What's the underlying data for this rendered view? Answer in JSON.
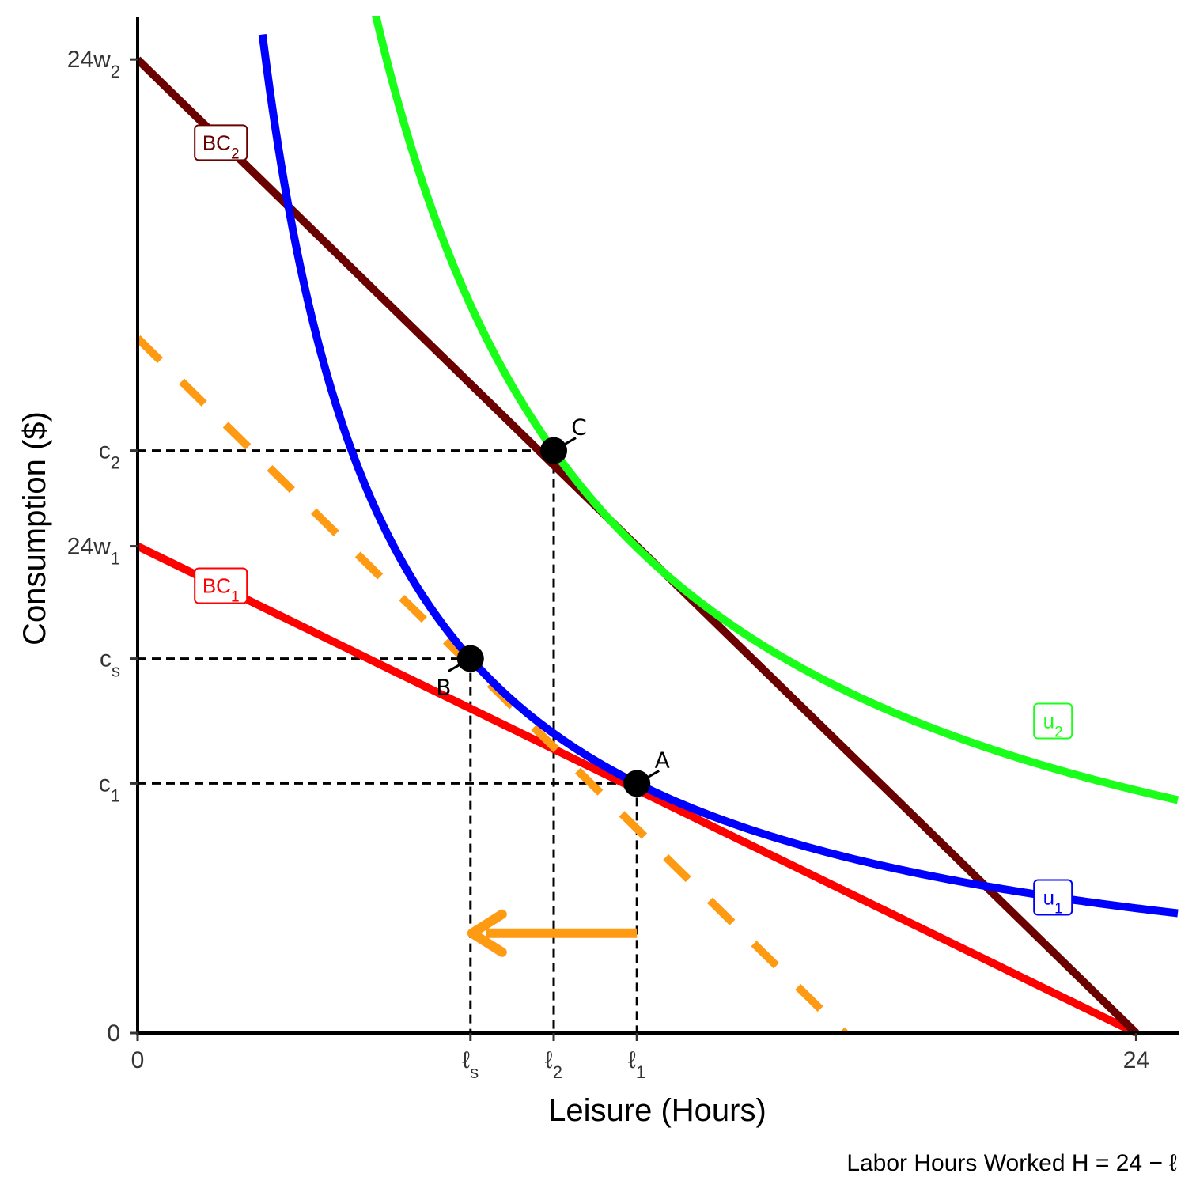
{
  "chart_data": {
    "type": "line",
    "xlabel": "Leisure (Hours)",
    "ylabel": "Consumption ($)",
    "caption": "Labor Hours Worked H = 24 − ℓ",
    "xlim": [
      0,
      25
    ],
    "ylim": [
      0,
      24.3
    ],
    "x_ticks": [
      {
        "value": 0,
        "label": "0"
      },
      {
        "value": 8,
        "label": "ℓ",
        "sub": "s"
      },
      {
        "value": 10,
        "label": "ℓ",
        "sub": "2"
      },
      {
        "value": 12,
        "label": "ℓ",
        "sub": "1"
      },
      {
        "value": 24,
        "label": "24"
      }
    ],
    "y_ticks": [
      {
        "value": 0,
        "label": "0"
      },
      {
        "value": 6,
        "label": "c",
        "sub": "1"
      },
      {
        "value": 9,
        "label": "c",
        "sub": "s"
      },
      {
        "value": 11.7,
        "label": "24w",
        "sub": "1"
      },
      {
        "value": 14,
        "label": "c",
        "sub": "2"
      },
      {
        "value": 23.4,
        "label": "24w",
        "sub": "2"
      }
    ],
    "series": [
      {
        "name": "BC",
        "sub": "1",
        "kind": "line",
        "color": "#ff0000",
        "points": [
          [
            0,
            11.7
          ],
          [
            24,
            0
          ]
        ],
        "label_at": [
          2,
          10.75
        ]
      },
      {
        "name": "BC",
        "sub": "2",
        "kind": "line",
        "color": "#6b0000",
        "points": [
          [
            0,
            23.4
          ],
          [
            24,
            0
          ]
        ],
        "label_at": [
          2,
          21.4
        ]
      },
      {
        "name": "",
        "kind": "dashed",
        "color": "#ff9a13",
        "points": [
          [
            0,
            16.7
          ],
          [
            17,
            0
          ]
        ]
      },
      {
        "name": "u",
        "sub": "1",
        "kind": "curve",
        "color": "#0000ff",
        "k": 72,
        "x_start": 3,
        "x_end": 25,
        "label_at": [
          22,
          3.26
        ]
      },
      {
        "name": "u",
        "sub": "2",
        "kind": "curve",
        "color": "#1aff1a",
        "k": 140,
        "x_start": 4,
        "x_end": 25,
        "label_at": [
          22,
          7.5
        ]
      }
    ],
    "points": [
      {
        "label": "A",
        "x": 12,
        "y": 6,
        "label_pos": "upper-right"
      },
      {
        "label": "B",
        "x": 8,
        "y": 9,
        "label_pos": "lower-left"
      },
      {
        "label": "C",
        "x": 10,
        "y": 14,
        "label_pos": "upper-right"
      }
    ],
    "guides": [
      [
        12,
        6
      ],
      [
        8,
        9
      ],
      [
        10,
        14
      ]
    ],
    "arrow": {
      "from": [
        12,
        2.4
      ],
      "to": [
        8,
        2.4
      ],
      "color": "#ff9a13"
    },
    "grid": false
  }
}
